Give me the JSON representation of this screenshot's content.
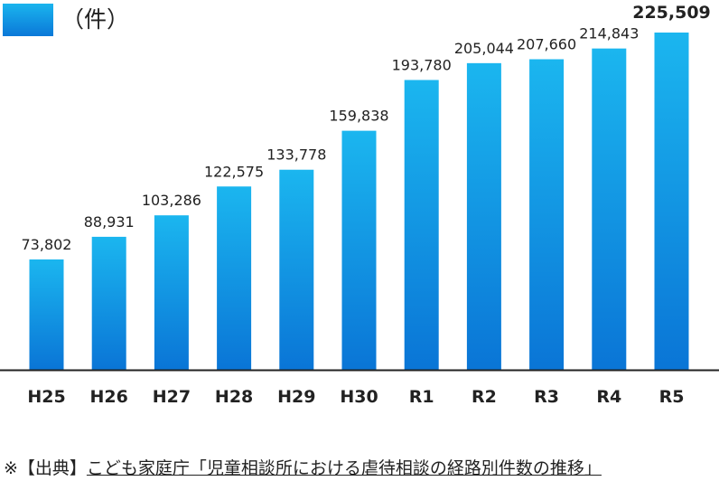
{
  "legend": {
    "label": "（件）",
    "color": "#0b8fe2"
  },
  "source": {
    "prefix": "※【出典】",
    "text": "こども家庭庁「児童相談所における虐待相談の経路別件数の推移」"
  },
  "colors": {
    "bar_top": "#1bb6ef",
    "bar_bottom": "#0a75d6",
    "axis": "#222222"
  },
  "chart_data": {
    "type": "bar",
    "categories": [
      "H25",
      "H26",
      "H27",
      "H28",
      "H29",
      "H30",
      "R1",
      "R2",
      "R3",
      "R4",
      "R5"
    ],
    "values": [
      73802,
      88931,
      103286,
      122575,
      133778,
      159838,
      193780,
      205044,
      207660,
      214843,
      225509
    ],
    "value_labels": [
      "73,802",
      "88,931",
      "103,286",
      "122,575",
      "133,778",
      "159,838",
      "193,780",
      "205,044",
      "207,660",
      "214,843",
      "225,509"
    ],
    "highlight_index": 10,
    "ylim": [
      0,
      225509
    ],
    "grid": false
  }
}
